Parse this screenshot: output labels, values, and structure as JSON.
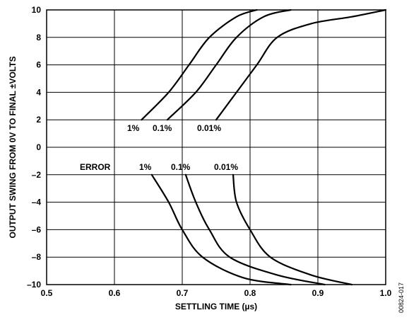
{
  "chart_data": {
    "type": "line",
    "xlabel": "SETTLING TIME (µs)",
    "ylabel": "OUTPUT SWING FROM 0V TO FINAL ±VOLTS",
    "xlim": [
      0.5,
      1.0
    ],
    "ylim": [
      -10,
      10
    ],
    "x_ticks": [
      "0.5",
      "0.6",
      "0.7",
      "0.8",
      "0.9",
      "1.0"
    ],
    "y_ticks": [
      "10",
      "8",
      "6",
      "4",
      "2",
      "0",
      "–2",
      "–4",
      "–6",
      "–8",
      "–10"
    ],
    "grid": true,
    "series": [
      {
        "name": "1%",
        "points": [
          [
            0.64,
            2
          ],
          [
            0.68,
            4
          ],
          [
            0.71,
            6
          ],
          [
            0.74,
            8
          ],
          [
            0.78,
            9.5
          ],
          [
            0.81,
            10
          ]
        ]
      },
      {
        "name": "0.1%",
        "points": [
          [
            0.678,
            2
          ],
          [
            0.72,
            4
          ],
          [
            0.75,
            6
          ],
          [
            0.78,
            8
          ],
          [
            0.82,
            9.5
          ],
          [
            0.86,
            10
          ]
        ]
      },
      {
        "name": "0.01%",
        "points": [
          [
            0.75,
            2
          ],
          [
            0.78,
            4
          ],
          [
            0.81,
            6
          ],
          [
            0.84,
            8
          ],
          [
            0.89,
            9
          ],
          [
            0.95,
            9.5
          ],
          [
            1.0,
            10
          ]
        ]
      },
      {
        "name": "1%",
        "points": [
          [
            0.655,
            -2
          ],
          [
            0.68,
            -4
          ],
          [
            0.7,
            -6
          ],
          [
            0.73,
            -8
          ],
          [
            0.79,
            -9.5
          ],
          [
            0.86,
            -10
          ]
        ]
      },
      {
        "name": "0.1%",
        "points": [
          [
            0.705,
            -2
          ],
          [
            0.72,
            -4
          ],
          [
            0.74,
            -6
          ],
          [
            0.77,
            -8
          ],
          [
            0.84,
            -9.3
          ],
          [
            0.91,
            -10
          ]
        ]
      },
      {
        "name": "0.01%",
        "points": [
          [
            0.775,
            -2
          ],
          [
            0.78,
            -4
          ],
          [
            0.8,
            -6
          ],
          [
            0.83,
            -8
          ],
          [
            0.89,
            -9.3
          ],
          [
            0.95,
            -10
          ]
        ]
      }
    ],
    "annotations": {
      "upper": [
        "1%",
        "0.1%",
        "0.01%"
      ],
      "lower_prefix": "ERROR",
      "lower": [
        "1%",
        "0.1%",
        "0.01%"
      ]
    },
    "figure_id": "00824-017"
  }
}
